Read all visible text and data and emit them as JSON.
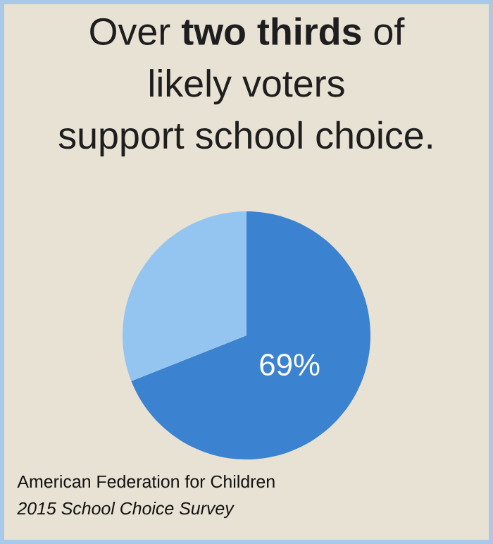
{
  "chart_data": {
    "type": "pie",
    "title": "Over **two thirds** of likely voters support school choice.",
    "categories": [
      null,
      null
    ],
    "values": [
      69,
      31
    ],
    "colors": [
      "#3b82d0",
      "#93c5f0"
    ],
    "value_labels": [
      "69%",
      null
    ],
    "annotations": [
      "American Federation for Children",
      "2015 School Choice Survey"
    ]
  }
}
